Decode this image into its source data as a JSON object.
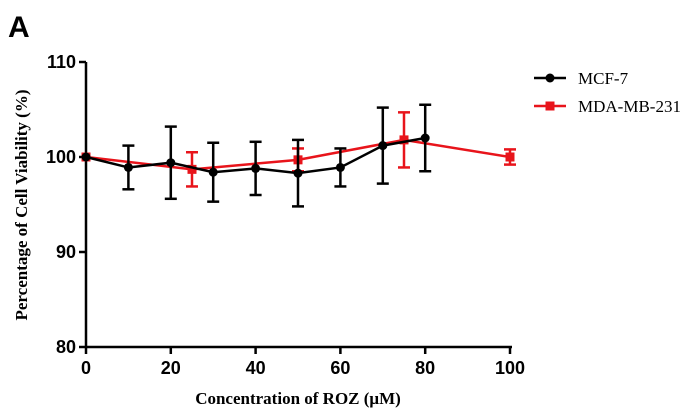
{
  "panel_label": "A",
  "chart_data": {
    "type": "line",
    "xlabel": "Concentration of ROZ (μM)",
    "ylabel": "Percentage of Cell Viability (%)",
    "xlim": [
      0,
      100
    ],
    "ylim": [
      80,
      110
    ],
    "x_ticks": [
      0,
      20,
      40,
      60,
      80,
      100
    ],
    "y_ticks": [
      80,
      90,
      100,
      110
    ],
    "grid": false,
    "legend_position": "top-right",
    "series": [
      {
        "name": "MCF-7",
        "color": "#000000",
        "marker": "circle",
        "x": [
          0,
          10,
          20,
          30,
          40,
          50,
          60,
          70,
          80
        ],
        "y": [
          100,
          98.9,
          99.4,
          98.4,
          98.8,
          98.3,
          98.9,
          101.2,
          102.0
        ],
        "err": [
          0,
          2.3,
          3.8,
          3.1,
          2.8,
          3.5,
          2.0,
          4.0,
          3.5
        ]
      },
      {
        "name": "MDA-MB-231",
        "color": "#e8141b",
        "marker": "square",
        "x": [
          0,
          25,
          50,
          75,
          100
        ],
        "y": [
          100,
          98.7,
          99.7,
          101.8,
          100.0
        ],
        "err": [
          0,
          1.8,
          1.2,
          2.9,
          0.8
        ]
      }
    ]
  }
}
